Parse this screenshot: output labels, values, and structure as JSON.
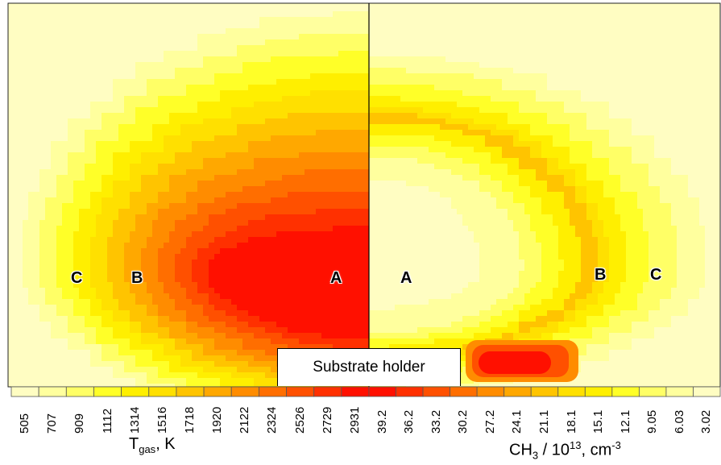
{
  "chart_data": [
    {
      "type": "heatmap",
      "side": "left",
      "colorbar_label_parts": {
        "symbol": "T",
        "subscript": "gas",
        "unit": ",  K"
      },
      "colorbar_ticks": [
        "505",
        "707",
        "909",
        "1112",
        "1314",
        "1516",
        "1718",
        "1920",
        "2122",
        "2324",
        "2526",
        "2729",
        "2931"
      ],
      "colorbar_colors": [
        "#fffdc2",
        "#ffff9e",
        "#ffff66",
        "#ffff28",
        "#ffef00",
        "#ffe000",
        "#ffc400",
        "#ffa800",
        "#ff8c00",
        "#ff6e00",
        "#ff5000",
        "#ff3000",
        "#ff1000"
      ],
      "region_labels": [
        "C",
        "B",
        "A"
      ]
    },
    {
      "type": "heatmap",
      "side": "right",
      "colorbar_label_parts": {
        "prefix": "CH",
        "prefix_sub": "3",
        "mid": " / 10",
        "exp": "13",
        "unit": ",  cm",
        "unit_exp": "-3"
      },
      "colorbar_ticks": [
        "39.2",
        "36.2",
        "33.2",
        "30.2",
        "27.2",
        "24.1",
        "21.1",
        "18.1",
        "15.1",
        "12.1",
        "9.05",
        "6.03",
        "3.02"
      ],
      "colorbar_colors": [
        "#ff1000",
        "#ff3000",
        "#ff5000",
        "#ff6e00",
        "#ff8c00",
        "#ffa800",
        "#ffc400",
        "#ffe000",
        "#ffef00",
        "#ffff28",
        "#ffff66",
        "#ffff9e",
        "#fffdc2"
      ],
      "region_labels": [
        "A",
        "B",
        "C"
      ]
    }
  ],
  "substrate_label": "Substrate holder",
  "background_colors": {
    "hot": "#ff1a00",
    "cool": "#fffec8"
  }
}
